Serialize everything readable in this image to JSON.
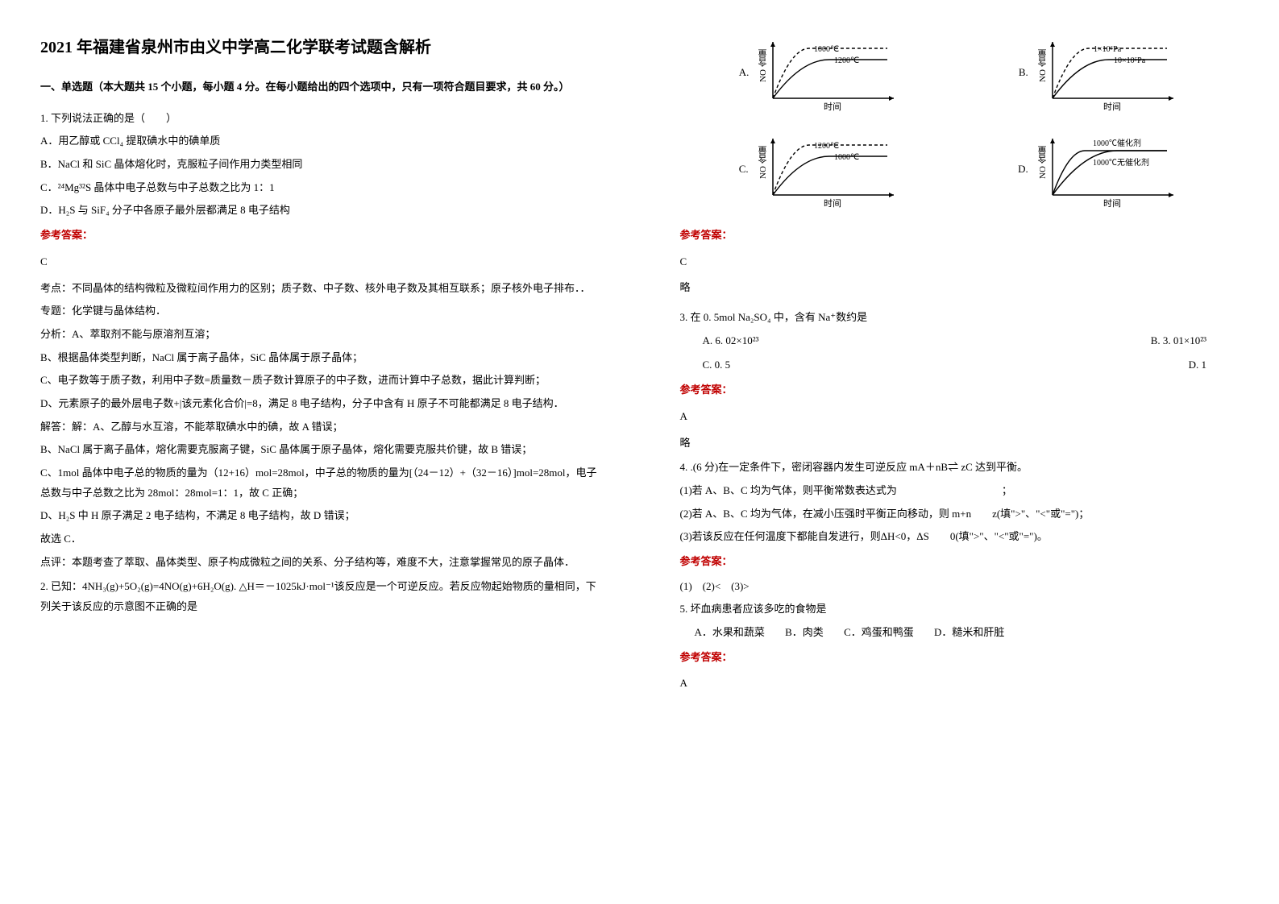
{
  "title": "2021 年福建省泉州市由义中学高二化学联考试题含解析",
  "section1_head": "一、单选题（本大题共 15 个小题，每小题 4 分。在每小题给出的四个选项中，只有一项符合题目要求，共 60 分。）",
  "q1": {
    "stem": "1. 下列说法正确的是（　　）",
    "A": "A．用乙醇或 CCl₄ 提取碘水中的碘单质",
    "B": "B．NaCl 和 SiC 晶体熔化时，克服粒子间作用力类型相同",
    "C": "C．²⁴Mg³²S 晶体中电子总数与中子总数之比为 1：1",
    "D": "D．H₂S 与 SiF₄ 分子中各原子最外层都满足 8 电子结构",
    "ans_label": "参考答案：",
    "ans": "C",
    "kaodian": "考点：不同晶体的结构微粒及微粒间作用力的区别；质子数、中子数、核外电子数及其相互联系；原子核外电子排布．．",
    "zhuanti": "专题：化学键与晶体结构．",
    "fenxi_a": "分析：A、萃取剂不能与原溶剂互溶；",
    "fenxi_b": "B、根据晶体类型判断，NaCl 属于离子晶体，SiC 晶体属于原子晶体；",
    "fenxi_c": "C、电子数等于质子数，利用中子数=质量数－质子数计算原子的中子数，进而计算中子总数，据此计算判断；",
    "fenxi_d": "D、元素原子的最外层电子数+|该元素化合价|=8，满足 8 电子结构，分子中含有 H 原子不可能都满足 8 电子结构．",
    "jieda_a": "解答：解：A、乙醇与水互溶，不能萃取碘水中的碘，故 A 错误；",
    "jieda_b": "B、NaCl 属于离子晶体，熔化需要克服离子键，SiC 晶体属于原子晶体，熔化需要克服共价键，故 B 错误；",
    "jieda_c": "C、1mol 晶体中电子总的物质的量为（12+16）mol=28mol，中子总的物质的量为[（24－12）+（32－16）]mol=28mol，电子总数与中子总数之比为 28mol：28mol=1：1，故 C 正确；",
    "jieda_d": "D、H₂S 中 H 原子满足 2 电子结构，不满足 8 电子结构，故 D 错误；",
    "guxuan": "故选 C．",
    "dianping": "点评：本题考查了萃取、晶体类型、原子构成微粒之间的关系、分子结构等，难度不大，注意掌握常见的原子晶体．"
  },
  "q2": {
    "stem": "2. 已知：4NH₃(g)+5O₂(g)=4NO(g)+6H₂O(g). △H＝－1025kJ·mol⁻¹该反应是一个可逆反应。若反应物起始物质的量相同，下列关于该反应的示意图不正确的是",
    "ans_label": "参考答案：",
    "ans": "C",
    "lue": "略",
    "charts": {
      "A": {
        "ylabel": "NO 含量",
        "xlabel": "时间",
        "lines": [
          {
            "label": "1000℃",
            "dash": true,
            "y": 62
          },
          {
            "label": "1200℃",
            "dash": false,
            "y": 48
          }
        ]
      },
      "B": {
        "ylabel": "NO 含量",
        "xlabel": "时间",
        "lines": [
          {
            "label": "1×10⁵Pa",
            "dash": true,
            "y": 62
          },
          {
            "label": "10×10⁵Pa",
            "dash": false,
            "y": 48
          }
        ]
      },
      "C": {
        "ylabel": "NO 含量",
        "xlabel": "时间",
        "lines": [
          {
            "label": "1200℃",
            "dash": true,
            "y": 62
          },
          {
            "label": "1000℃",
            "dash": false,
            "y": 48
          }
        ]
      },
      "D": {
        "ylabel": "NO 含量",
        "xlabel": "时间",
        "lines": [
          {
            "label": "1000℃催化剂",
            "dash": false,
            "y": 55,
            "early": true
          },
          {
            "label": "1000℃无催化剂",
            "dash": false,
            "y": 55,
            "early": false
          }
        ]
      }
    }
  },
  "q3": {
    "stem": "3. 在 0. 5mol Na₂SO₄ 中，含有 Na⁺数约是",
    "A": "A. 6. 02×10²³",
    "B": "B. 3. 01×10²³",
    "C": "C. 0. 5",
    "D": "D. 1",
    "ans_label": "参考答案：",
    "ans": "A",
    "lue": "略"
  },
  "q4": {
    "stem": "4. .(6 分)在一定条件下，密闭容器内发生可逆反应 mA＋nB⇌ zC 达到平衡。",
    "p1": "(1)若 A、B、C 均为气体，则平衡常数表达式为　　　　　　　　　　；",
    "p2": "(2)若 A、B、C 均为气体，在减小压强时平衡正向移动，则 m+n　　z(填\">\"、\"<\"或\"=\")；",
    "p3": "(3)若该反应在任何温度下都能自发进行，则ΔH<0，ΔS　　0(填\">\"、\"<\"或\"=\")。",
    "ans_label": "参考答案：",
    "ans": "(1)　(2)<　(3)>"
  },
  "q5": {
    "stem": "5. 坏血病患者应该多吃的食物是",
    "A": "A．水果和蔬菜",
    "B": "B．肉类",
    "C": "C．鸡蛋和鸭蛋",
    "D": "D．糙米和肝脏",
    "ans_label": "参考答案：",
    "ans": "A"
  }
}
